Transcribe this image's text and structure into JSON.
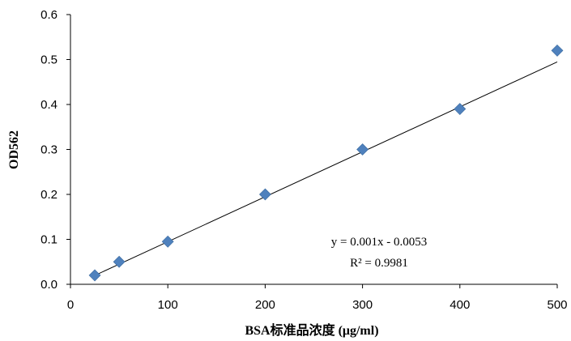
{
  "chart_data": {
    "type": "scatter",
    "title": "",
    "xlabel": "BSA标准品浓度 (μg/ml)",
    "ylabel": "OD562",
    "xlim": [
      0,
      500
    ],
    "ylim": [
      0,
      0.6
    ],
    "x_ticks": [
      "0",
      "100",
      "200",
      "300",
      "400",
      "500"
    ],
    "x_tick_values": [
      0,
      100,
      200,
      300,
      400,
      500
    ],
    "y_ticks": [
      "0.0",
      "0.1",
      "0.2",
      "0.3",
      "0.4",
      "0.5",
      "0.6"
    ],
    "y_tick_values": [
      0,
      0.1,
      0.2,
      0.3,
      0.4,
      0.5,
      0.6
    ],
    "grid": false,
    "legend": "none",
    "series": [
      {
        "marker": "diamond",
        "color": "#4F81BD",
        "x": [
          25,
          50,
          100,
          200,
          300,
          400,
          500
        ],
        "y": [
          0.02,
          0.05,
          0.095,
          0.2,
          0.3,
          0.39,
          0.52
        ]
      }
    ],
    "trendline": {
      "color": "#000000",
      "slope": 0.001,
      "intercept": -0.0053,
      "x_range": [
        25,
        500
      ]
    },
    "annotations": {
      "equation": "y = 0.001x - 0.0053",
      "r_squared": "R² = 0.9981"
    }
  }
}
